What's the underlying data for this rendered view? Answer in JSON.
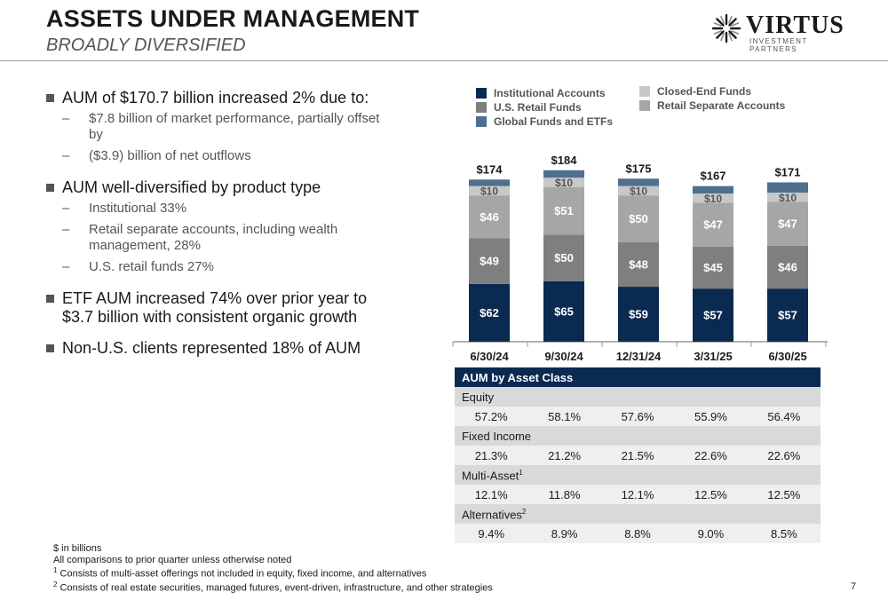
{
  "header": {
    "title": "ASSETS UNDER MANAGEMENT",
    "subtitle": "BROADLY DIVERSIFIED",
    "logo_name": "VIRTUS",
    "logo_tagline": "INVESTMENT PARTNERS"
  },
  "bullets": [
    {
      "text": "AUM of $170.7 billion increased 2% due to:",
      "subs": [
        "$7.8 billion of market performance, partially offset by",
        "($3.9) billion of net outflows"
      ]
    },
    {
      "text": "AUM well-diversified by product type",
      "subs": [
        "Institutional 33%",
        "Retail separate accounts, including wealth management, 28%",
        "U.S. retail funds 27%"
      ]
    },
    {
      "text": "ETF AUM increased 74% over prior year to $3.7 billion with consistent organic growth",
      "subs": []
    },
    {
      "text": "Non-U.S. clients represented 18% of AUM",
      "subs": []
    }
  ],
  "footnotes": {
    "line1": "$ in billions",
    "line2": "All comparisons to prior quarter unless otherwise noted",
    "line3_mark": "1",
    "line3": " Consists of multi-asset offerings not included in equity, fixed income, and alternatives",
    "line4_mark": "2",
    "line4": " Consists of real estate securities, managed futures, event-driven, infrastructure, and other strategies"
  },
  "page_number": "7",
  "colors": {
    "institutional": "#0b2a52",
    "us_retail": "#7f7f7f",
    "retail_separate": "#a6a6a6",
    "closed_end": "#c8c8c8",
    "global_etf": "#4f6f8f"
  },
  "chart_data": {
    "type": "bar",
    "stacked": true,
    "categories": [
      "6/30/24",
      "9/30/24",
      "12/31/24",
      "3/31/25",
      "6/30/25"
    ],
    "totals": [
      "$174",
      "$184",
      "$175",
      "$167",
      "$171"
    ],
    "total_values": [
      174,
      184,
      175,
      167,
      171
    ],
    "series": [
      {
        "name": "Institutional Accounts",
        "values": [
          62,
          65,
          59,
          57,
          57
        ],
        "labels": [
          "$62",
          "$65",
          "$59",
          "$57",
          "$57"
        ],
        "color": "#0b2a52"
      },
      {
        "name": "U.S. Retail Funds",
        "values": [
          49,
          50,
          48,
          45,
          46
        ],
        "labels": [
          "$49",
          "$50",
          "$48",
          "$45",
          "$46"
        ],
        "color": "#7f7f7f"
      },
      {
        "name": "Retail Separate Accounts",
        "values": [
          46,
          51,
          50,
          47,
          47
        ],
        "labels": [
          "$46",
          "$51",
          "$50",
          "$47",
          "$47"
        ],
        "color": "#a6a6a6"
      },
      {
        "name": "Closed-End Funds",
        "values": [
          10,
          10,
          10,
          10,
          10
        ],
        "labels": [
          "$10",
          "$10",
          "$10",
          "$10",
          "$10"
        ],
        "color": "#c8c8c8"
      },
      {
        "name": "Global Funds and ETFs",
        "values": [
          7,
          8,
          8,
          8,
          11
        ],
        "labels": [
          "",
          "",
          "",
          "",
          ""
        ],
        "color": "#4f6f8f"
      }
    ],
    "legend_order": [
      "Institutional Accounts",
      "U.S. Retail Funds",
      "Global Funds and ETFs",
      "Closed-End Funds",
      "Retail Separate Accounts"
    ],
    "legend_placement": "top",
    "ylim": [
      0,
      190
    ],
    "grid": false
  },
  "table": {
    "title": "AUM by Asset Class",
    "sections": [
      {
        "name": "Equity",
        "sup": "",
        "values": [
          "57.2%",
          "58.1%",
          "57.6%",
          "55.9%",
          "56.4%"
        ]
      },
      {
        "name": "Fixed Income",
        "sup": "",
        "values": [
          "21.3%",
          "21.2%",
          "21.5%",
          "22.6%",
          "22.6%"
        ]
      },
      {
        "name": "Multi-Asset",
        "sup": "1",
        "values": [
          "12.1%",
          "11.8%",
          "12.1%",
          "12.5%",
          "12.5%"
        ]
      },
      {
        "name": "Alternatives",
        "sup": "2",
        "values": [
          "9.4%",
          "8.9%",
          "8.8%",
          "9.0%",
          "8.5%"
        ]
      }
    ]
  }
}
